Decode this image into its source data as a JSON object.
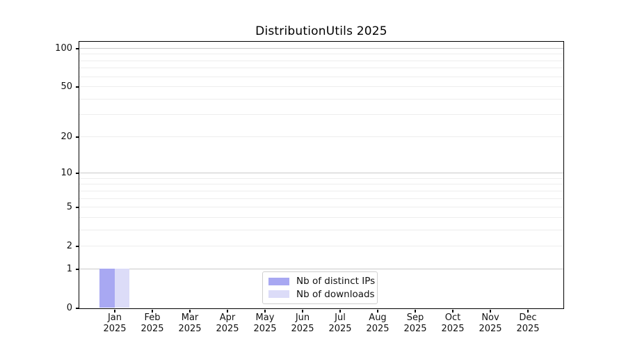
{
  "chart_data": {
    "type": "bar",
    "title": "DistributionUtils 2025",
    "x": {
      "months": [
        "Jan",
        "Feb",
        "Mar",
        "Apr",
        "May",
        "Jun",
        "Jul",
        "Aug",
        "Sep",
        "Oct",
        "Nov",
        "Dec"
      ],
      "year": "2025"
    },
    "y_axis": {
      "scale": "log1p",
      "min": 0,
      "max": 100,
      "labeled_ticks": [
        0,
        1,
        2,
        5,
        10,
        20,
        50,
        100
      ],
      "decade_gridlines": [
        1,
        10,
        100
      ],
      "light_gridlines": [
        2,
        3,
        4,
        5,
        6,
        7,
        8,
        9,
        20,
        30,
        40,
        50,
        60,
        70,
        80,
        90
      ]
    },
    "series": [
      {
        "name": "Nb of distinct IPs",
        "color": "#a8a8f2",
        "values": [
          1,
          0,
          0,
          0,
          0,
          0,
          0,
          0,
          0,
          0,
          0,
          0
        ]
      },
      {
        "name": "Nb of downloads",
        "color": "#dcdcf8",
        "values": [
          1,
          0,
          0,
          0,
          0,
          0,
          0,
          0,
          0,
          0,
          0,
          0
        ]
      }
    ],
    "legend": {
      "position": "lower center"
    },
    "grid": true
  },
  "colors": {
    "background": "#ffffff",
    "axis": "#000000",
    "text": "#111111",
    "decade_gridline": "#c9c9c9",
    "light_gridline": "#ededed",
    "legend_border": "#cfcfcf"
  }
}
